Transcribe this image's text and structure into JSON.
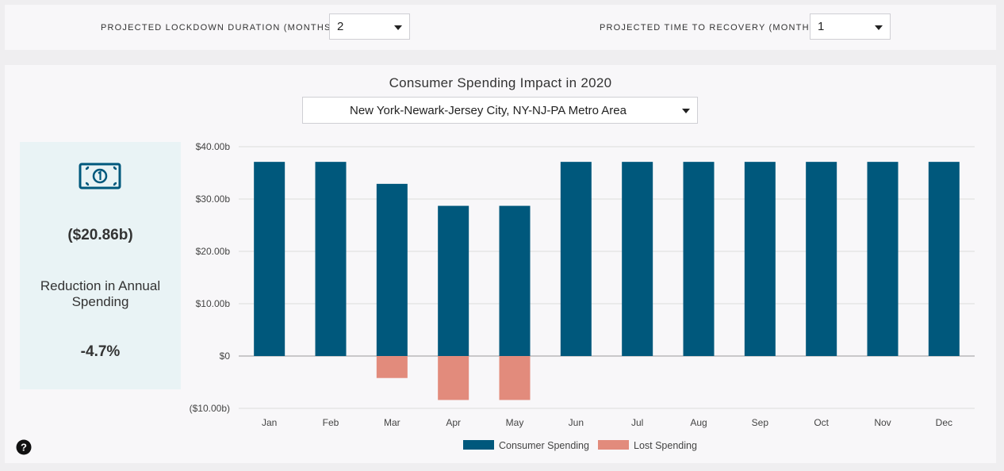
{
  "controls": {
    "lockdown_label": "PROJECTED LOCKDOWN DURATION (MONTHS)",
    "lockdown_value": "2",
    "recovery_label": "PROJECTED TIME TO RECOVERY (MONTHS)",
    "recovery_value": "1"
  },
  "metro": {
    "selected": "New York-Newark-Jersey City, NY-NJ-PA Metro Area"
  },
  "summary": {
    "icon": "money-bill-icon",
    "amount": "($20.86b)",
    "label": "Reduction in Annual Spending",
    "percent": "-4.7%"
  },
  "colors": {
    "consumer": "#00587c",
    "lost": "#e28b7c",
    "panel": "#e9f3f5"
  },
  "chart_data": {
    "type": "bar",
    "title": "Consumer Spending Impact in 2020",
    "categories": [
      "Jan",
      "Feb",
      "Mar",
      "Apr",
      "May",
      "Jun",
      "Jul",
      "Aug",
      "Sep",
      "Oct",
      "Nov",
      "Dec"
    ],
    "series": [
      {
        "name": "Consumer Spending",
        "values": [
          37.1,
          37.1,
          32.9,
          28.7,
          28.7,
          37.1,
          37.1,
          37.1,
          37.1,
          37.1,
          37.1,
          37.1
        ]
      },
      {
        "name": "Lost Spending",
        "values": [
          0,
          0,
          -4.2,
          -8.4,
          -8.4,
          0,
          0,
          0,
          0,
          0,
          0,
          0
        ]
      }
    ],
    "ylim": [
      -10,
      40
    ],
    "yticks": [
      40,
      30,
      20,
      10,
      0,
      -10
    ],
    "ytick_labels": [
      "$40.00b",
      "$30.00b",
      "$20.00b",
      "$10.00b",
      "$0",
      "($10.00b)"
    ],
    "grid": true,
    "legend": "bottom"
  }
}
